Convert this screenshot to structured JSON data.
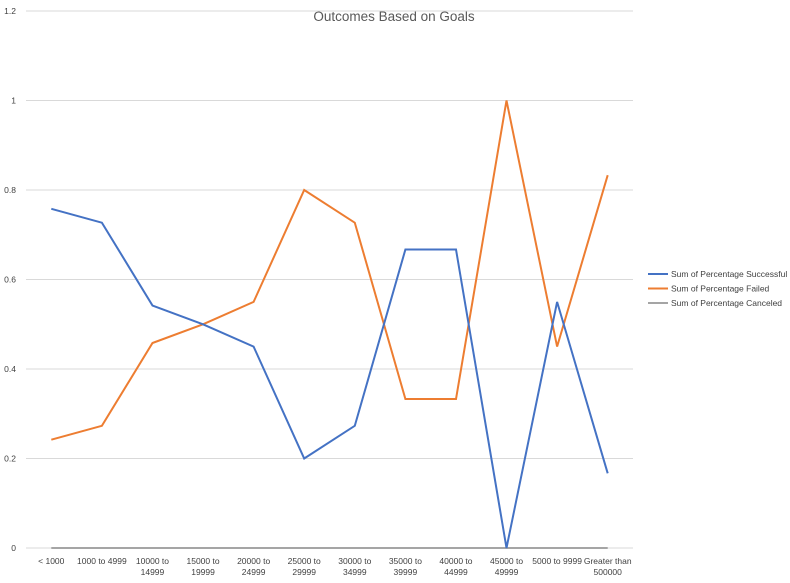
{
  "chart_data": {
    "type": "line",
    "title": "Outcomes Based on Goals",
    "xlabel": "",
    "ylabel": "",
    "ylim": [
      0,
      1.2
    ],
    "yticks": [
      "0",
      "0.2",
      "0.4",
      "0.6",
      "0.8",
      "1",
      "1.2"
    ],
    "grid": true,
    "legend_position": "right",
    "categories": [
      [
        "< 1000"
      ],
      [
        "1000 to 4999"
      ],
      [
        "10000 to",
        "14999"
      ],
      [
        "15000 to",
        "19999"
      ],
      [
        "20000 to",
        "24999"
      ],
      [
        "25000 to",
        "29999"
      ],
      [
        "30000 to",
        "34999"
      ],
      [
        "35000 to",
        "39999"
      ],
      [
        "40000 to",
        "44999"
      ],
      [
        "45000 to",
        "49999"
      ],
      [
        "5000 to 9999"
      ],
      [
        "Greater than",
        "500000"
      ]
    ],
    "series": [
      {
        "name": "Sum of Percentage Successful",
        "color": "#4472c4",
        "values": [
          0.758,
          0.727,
          0.542,
          0.5,
          0.45,
          0.2,
          0.273,
          0.667,
          0.667,
          0,
          0.55,
          0.167
        ]
      },
      {
        "name": "Sum of Percentage Failed",
        "color": "#ed7d31",
        "values": [
          0.242,
          0.273,
          0.458,
          0.5,
          0.55,
          0.8,
          0.727,
          0.333,
          0.333,
          1,
          0.45,
          0.833
        ]
      },
      {
        "name": "Sum of Percentage Canceled",
        "color": "#a5a5a5",
        "values": [
          0,
          0,
          0,
          0,
          0,
          0,
          0,
          0,
          0,
          0,
          0,
          0
        ]
      }
    ]
  }
}
